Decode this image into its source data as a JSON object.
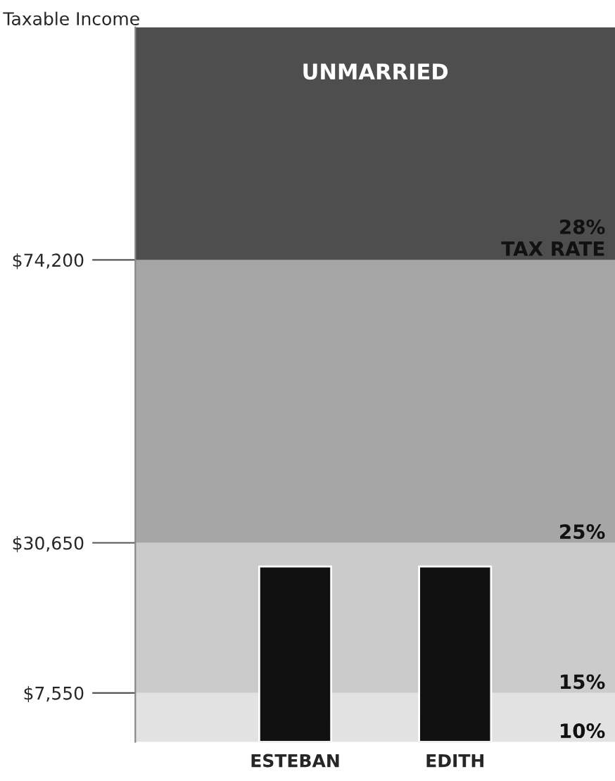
{
  "chart_data": {
    "type": "bar",
    "title": "UNMARRIED",
    "ylabel": "Taxable Income",
    "categories": [
      "ESTEBAN",
      "EDITH"
    ],
    "values": [
      27000,
      27000
    ],
    "colors": [
      "#111111",
      "#111111"
    ],
    "ylim": [
      0,
      110000
    ],
    "yticks": [
      {
        "value": 7550,
        "label": "$7,550"
      },
      {
        "value": 30650,
        "label": "$30,650"
      },
      {
        "value": 74200,
        "label": "$74,200"
      }
    ],
    "bands": [
      {
        "axis": "y",
        "from": 0,
        "to": 7550,
        "label": "10%",
        "color": "#e2e2e2"
      },
      {
        "axis": "y",
        "from": 7550,
        "to": 30650,
        "label": "15%",
        "color": "#cbcbcb"
      },
      {
        "axis": "y",
        "from": 30650,
        "to": 74200,
        "label": "25%",
        "color": "#a6a6a6"
      },
      {
        "axis": "y",
        "from": 74200,
        "to": 110000,
        "label": "28%\nTAX RATE",
        "color": "#4e4e4e"
      }
    ],
    "grid": false,
    "legend": false
  }
}
